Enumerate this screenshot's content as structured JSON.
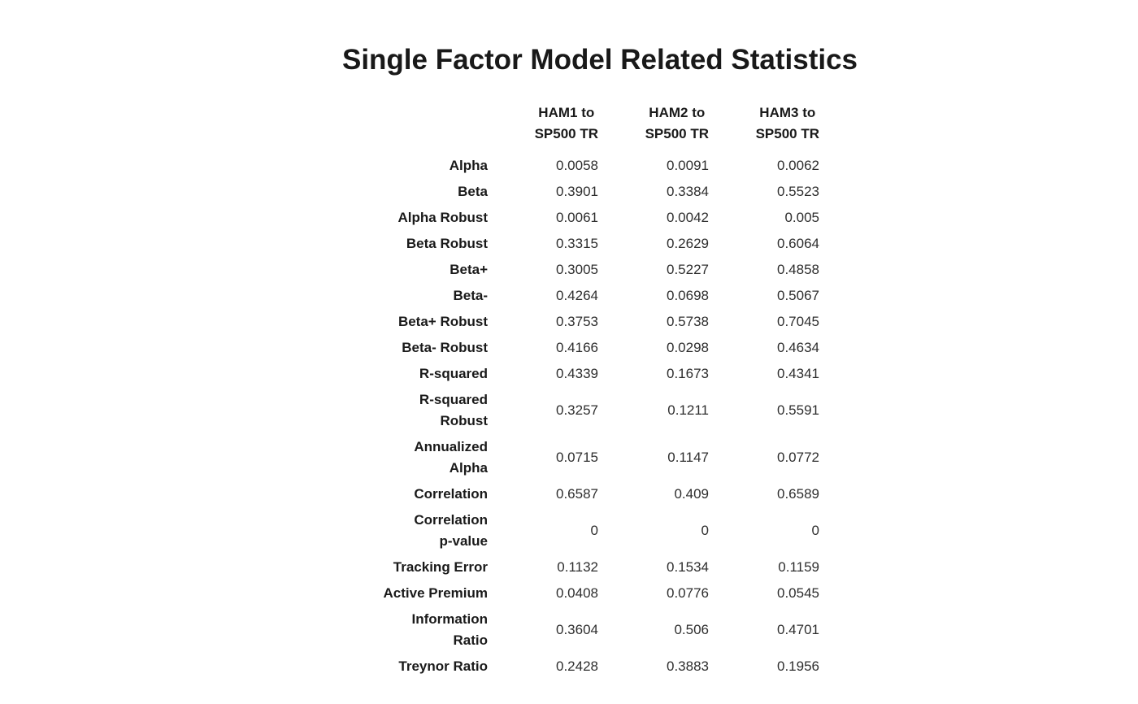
{
  "chart_data": {
    "type": "table",
    "title": "Single Factor Model Related Statistics",
    "columns": [
      "HAM1 to\nSP500 TR",
      "HAM2 to\nSP500 TR",
      "HAM3 to\nSP500 TR"
    ],
    "rows": [
      {
        "label": "Alpha",
        "values": [
          "0.0058",
          "0.0091",
          "0.0062"
        ]
      },
      {
        "label": "Beta",
        "values": [
          "0.3901",
          "0.3384",
          "0.5523"
        ]
      },
      {
        "label": "Alpha Robust",
        "values": [
          "0.0061",
          "0.0042",
          "0.005"
        ]
      },
      {
        "label": "Beta Robust",
        "values": [
          "0.3315",
          "0.2629",
          "0.6064"
        ]
      },
      {
        "label": "Beta+",
        "values": [
          "0.3005",
          "0.5227",
          "0.4858"
        ]
      },
      {
        "label": "Beta-",
        "values": [
          "0.4264",
          "0.0698",
          "0.5067"
        ]
      },
      {
        "label": "Beta+ Robust",
        "values": [
          "0.3753",
          "0.5738",
          "0.7045"
        ]
      },
      {
        "label": "Beta- Robust",
        "values": [
          "0.4166",
          "0.0298",
          "0.4634"
        ]
      },
      {
        "label": "R-squared",
        "values": [
          "0.4339",
          "0.1673",
          "0.4341"
        ]
      },
      {
        "label": "R-squared\nRobust",
        "values": [
          "0.3257",
          "0.1211",
          "0.5591"
        ]
      },
      {
        "label": "Annualized\nAlpha",
        "values": [
          "0.0715",
          "0.1147",
          "0.0772"
        ]
      },
      {
        "label": "Correlation",
        "values": [
          "0.6587",
          "0.409",
          "0.6589"
        ]
      },
      {
        "label": "Correlation\np-value",
        "values": [
          "0",
          "0",
          "0"
        ]
      },
      {
        "label": "Tracking Error",
        "values": [
          "0.1132",
          "0.1534",
          "0.1159"
        ]
      },
      {
        "label": "Active Premium",
        "values": [
          "0.0408",
          "0.0776",
          "0.0545"
        ]
      },
      {
        "label": "Information\nRatio",
        "values": [
          "0.3604",
          "0.506",
          "0.4701"
        ]
      },
      {
        "label": "Treynor Ratio",
        "values": [
          "0.2428",
          "0.3883",
          "0.1956"
        ]
      }
    ],
    "layout": {
      "background": "#ffffff",
      "text_color": "#1a1a1a",
      "grid": "off",
      "value_alignment": "right",
      "label_alignment": "right"
    }
  }
}
